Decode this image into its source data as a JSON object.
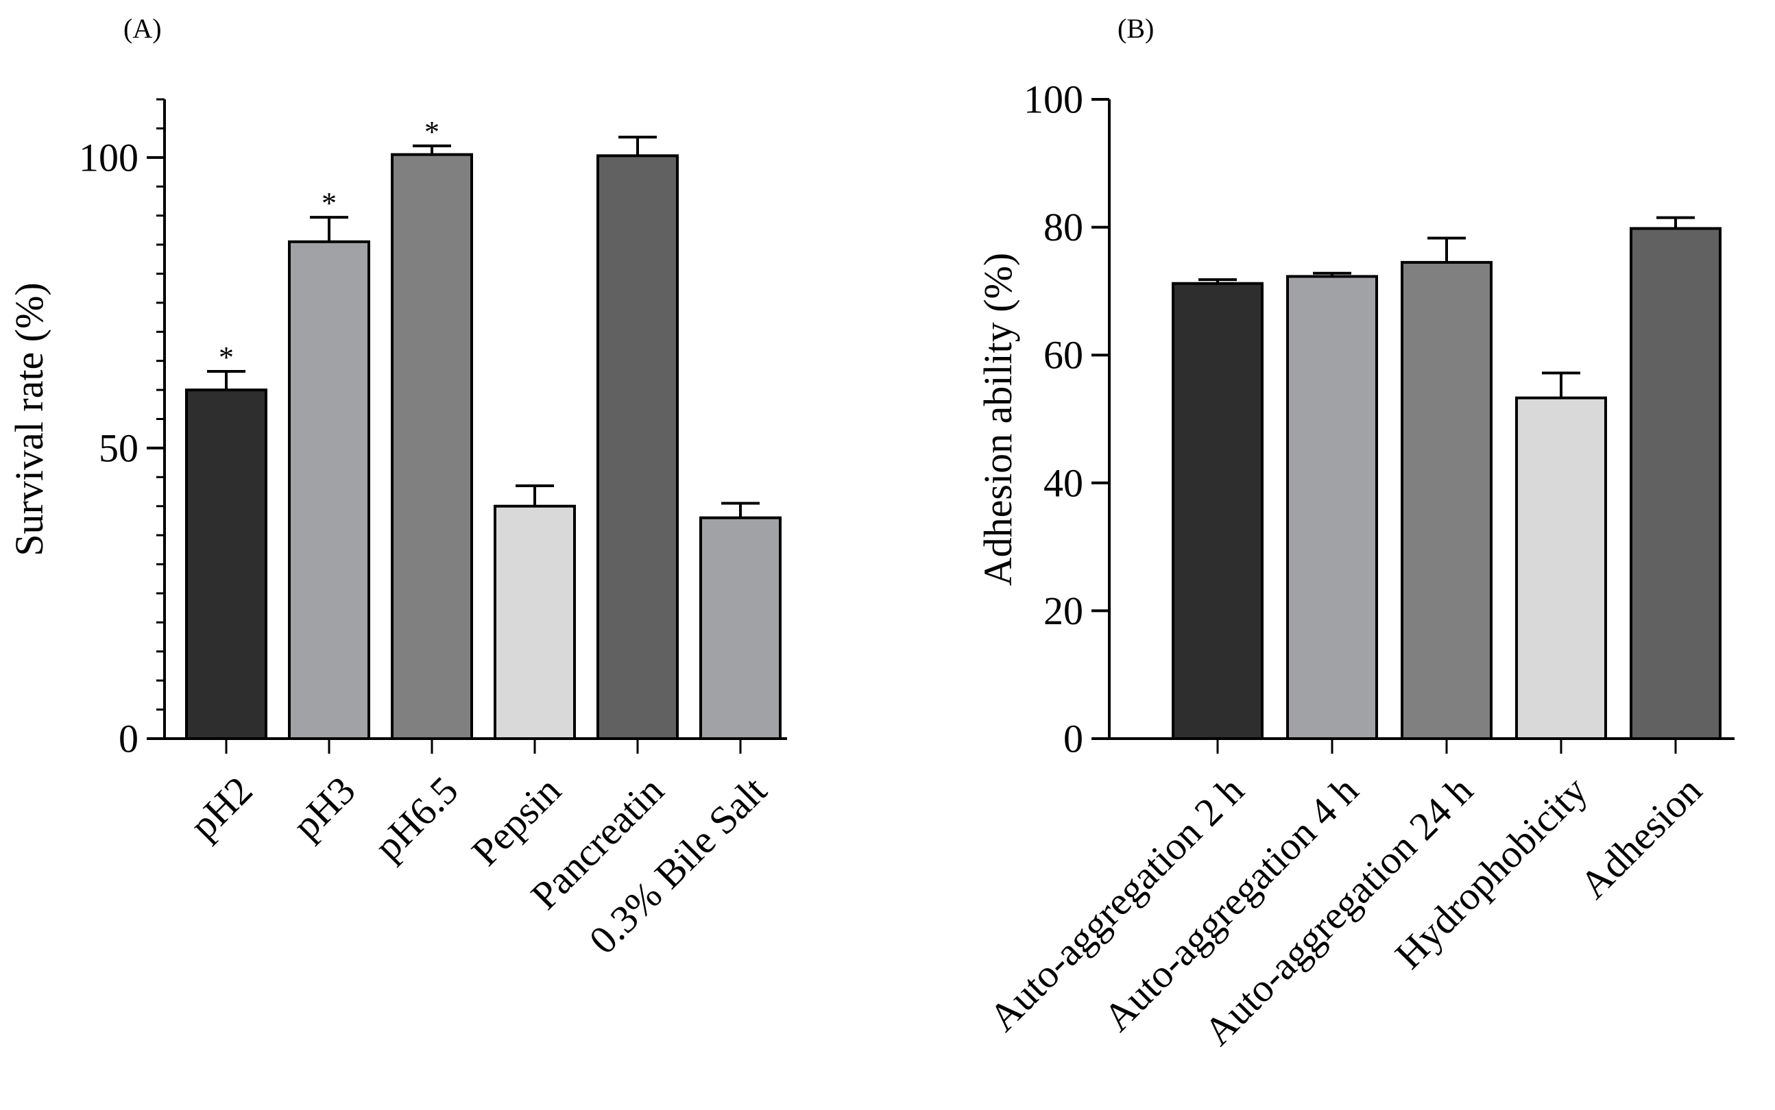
{
  "chart_data": [
    {
      "panel_label": "(A)",
      "type": "bar",
      "title": "",
      "xlabel": "",
      "ylabel": "Survival rate (%)",
      "ylim": [
        0,
        110
      ],
      "yticks": [
        0,
        50,
        100
      ],
      "minor_tick_step": 5,
      "categories": [
        "pH2",
        "pH3",
        "pH6.5",
        "Pepsin",
        "Pancreatin",
        "0.3% Bile Salt"
      ],
      "values": [
        60,
        85.5,
        100.5,
        40,
        100.3,
        38
      ],
      "errors": [
        3.2,
        4.2,
        1.5,
        3.5,
        3.2,
        2.5
      ],
      "significance": [
        "*",
        "*",
        "*",
        "",
        "",
        ""
      ],
      "colors": [
        "#2e2e2e",
        "#a1a2a5",
        "#808080",
        "#d9d9d9",
        "#616161",
        "#a1a2a5"
      ]
    },
    {
      "panel_label": "(B)",
      "type": "bar",
      "title": "",
      "xlabel": "",
      "ylabel": "Adhesion ability (%)",
      "ylim": [
        0,
        100
      ],
      "yticks": [
        0,
        20,
        40,
        60,
        80,
        100
      ],
      "minor_tick_step": 0,
      "categories": [
        "Auto-aggregation 2 h",
        "Auto-aggregation 4 h",
        "Auto-aggregation 24 h",
        "Hydrophobicity",
        "Adhesion"
      ],
      "values": [
        71.2,
        72.3,
        74.5,
        53.3,
        79.8
      ],
      "errors": [
        0.6,
        0.5,
        3.8,
        3.9,
        1.7
      ],
      "significance": [
        "",
        "",
        "",
        "",
        ""
      ],
      "colors": [
        "#2e2e2e",
        "#a1a2a5",
        "#808080",
        "#d9d9d9",
        "#616161"
      ]
    }
  ]
}
